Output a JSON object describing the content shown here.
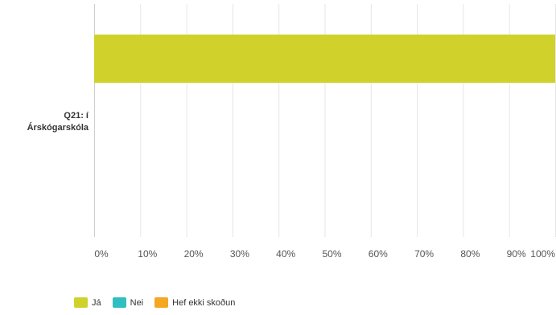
{
  "chart_data": {
    "type": "bar",
    "orientation": "horizontal",
    "stacked": true,
    "categories": [
      "Q21: í Árskógarskóla"
    ],
    "category_lines": [
      "Q21: í",
      "Árskógarskóla"
    ],
    "series": [
      {
        "name": "Já",
        "values": [
          100
        ],
        "color": "#d0d22b"
      },
      {
        "name": "Nei",
        "values": [
          0
        ],
        "color": "#2fbfc0"
      },
      {
        "name": "Hef ekki skoðun",
        "values": [
          0
        ],
        "color": "#f5a623"
      }
    ],
    "xlim": [
      0,
      100
    ],
    "x_ticks": [
      "0%",
      "10%",
      "20%",
      "30%",
      "40%",
      "50%",
      "60%",
      "70%",
      "80%",
      "90%",
      "100%"
    ],
    "grid": true,
    "legend_position": "bottom-left"
  }
}
